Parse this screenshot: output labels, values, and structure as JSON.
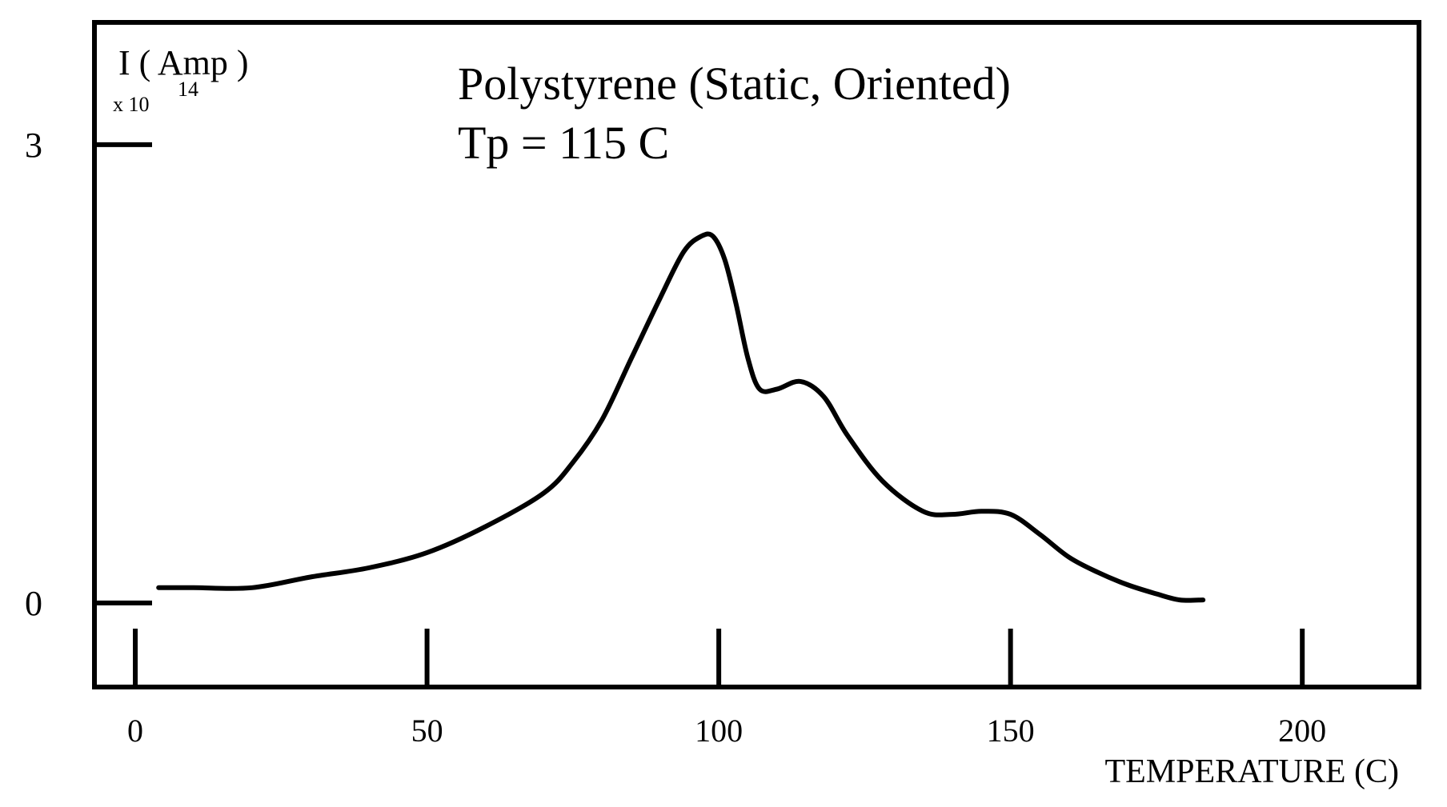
{
  "chart_data": {
    "type": "line",
    "title": "Polystyrene (Static, Oriented)",
    "subtitle": "Tp = 115 C",
    "xlabel": "TEMPERATURE (C)",
    "ylabel": "I ( Amp )",
    "ylabel_multiplier_base": "x 10",
    "ylabel_multiplier_exp": "14",
    "xlim": [
      -7,
      220
    ],
    "ylim": [
      -0.55,
      3.8
    ],
    "x_ticks": [
      0,
      50,
      100,
      150,
      200
    ],
    "x_tick_labels": [
      "0",
      "50",
      "100",
      "150",
      "200"
    ],
    "y_ticks": [
      0,
      3
    ],
    "y_tick_labels": [
      "0",
      "3"
    ],
    "grid": false,
    "series": [
      {
        "x": [
          4,
          10,
          20,
          30,
          40,
          50,
          60,
          70,
          75,
          80,
          85,
          90,
          94,
          97,
          99,
          101,
          103,
          105,
          107,
          110,
          114,
          118,
          122,
          128,
          135,
          140,
          145,
          150,
          155,
          160,
          165,
          170,
          175,
          179,
          183
        ],
        "y": [
          0.1,
          0.1,
          0.1,
          0.17,
          0.23,
          0.33,
          0.5,
          0.72,
          0.92,
          1.2,
          1.6,
          2.0,
          2.3,
          2.4,
          2.4,
          2.25,
          1.95,
          1.6,
          1.4,
          1.4,
          1.45,
          1.35,
          1.1,
          0.8,
          0.6,
          0.58,
          0.6,
          0.58,
          0.45,
          0.3,
          0.2,
          0.12,
          0.06,
          0.02,
          0.02
        ]
      }
    ]
  }
}
